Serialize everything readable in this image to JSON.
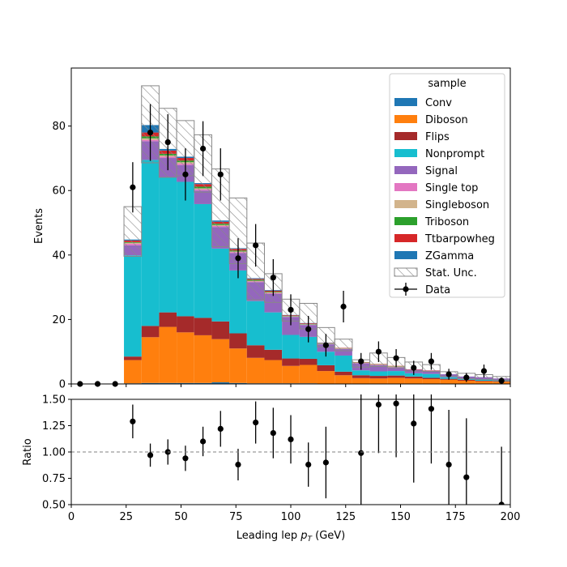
{
  "chart_data": {
    "type": "bar",
    "stacked": true,
    "xlabel_main": "Leading lep ",
    "xlabel_sub": "T",
    "xlabel_unit": " (GeV)",
    "xlabel_sym": "p",
    "ylabel": "Events",
    "ratio_ylabel": "Ratio",
    "xlim": [
      0,
      200
    ],
    "ylim": [
      0,
      98
    ],
    "ratio_ylim": [
      0.5,
      1.5
    ],
    "bin_edges": [
      0,
      8,
      16,
      24,
      32,
      40,
      48,
      56,
      64,
      72,
      80,
      88,
      96,
      104,
      112,
      120,
      128,
      136,
      144,
      152,
      160,
      168,
      176,
      184,
      192,
      200
    ],
    "x_ticks": [
      0,
      25,
      50,
      75,
      100,
      125,
      150,
      175,
      200
    ],
    "y_ticks": [
      0,
      20,
      40,
      60,
      80
    ],
    "ratio_ticks": [
      "0.50",
      "0.75",
      "1.00",
      "1.25",
      "1.50"
    ],
    "legend_title": "sample",
    "legend_position": "top-right",
    "series": [
      {
        "name": "Conv",
        "color": "#1f77b4",
        "values": [
          0,
          0,
          0,
          0.2,
          0.3,
          0.3,
          0.3,
          0.3,
          0.5,
          0.3,
          0.2,
          0.2,
          0.2,
          0.2,
          0.1,
          0.1,
          0.1,
          0.1,
          0.1,
          0.1,
          0.1,
          0.1,
          0.1,
          0.1,
          0.1
        ]
      },
      {
        "name": "Diboson",
        "color": "#ff7f0e",
        "values": [
          0,
          0,
          0,
          7.2,
          14.2,
          17.4,
          15.7,
          14.8,
          13.4,
          10.7,
          7.9,
          7.2,
          5.4,
          5.7,
          3.9,
          2.6,
          1.7,
          1.6,
          1.8,
          1.6,
          1.4,
          1.2,
          0.9,
          0.7,
          0.6
        ]
      },
      {
        "name": "Flips",
        "color": "#a52a2a",
        "values": [
          0,
          0,
          0,
          1.1,
          3.5,
          4.5,
          5.0,
          5.4,
          5.5,
          4.7,
          3.9,
          3.2,
          2.3,
          1.9,
          1.8,
          1.1,
          0.9,
          0.8,
          0.7,
          0.6,
          0.4,
          0.3,
          0.3,
          0.2,
          0.2
        ]
      },
      {
        "name": "Nonprompt",
        "color": "#17becf",
        "values": [
          0,
          0,
          0,
          31.4,
          51.5,
          42.0,
          41.7,
          35.3,
          22.6,
          19.5,
          13.7,
          11.6,
          7.3,
          6.8,
          4.2,
          5.0,
          1.5,
          1.4,
          1.4,
          1.0,
          1.2,
          0.5,
          0.4,
          0.4,
          0.2
        ]
      },
      {
        "name": "Signal",
        "color": "#9467bd",
        "values": [
          0,
          0,
          0,
          3.1,
          5.8,
          5.9,
          5.2,
          4.2,
          6.7,
          5.4,
          5.9,
          5.8,
          5.6,
          3.7,
          2.3,
          2.0,
          2.2,
          1.9,
          1.2,
          1.1,
          1.0,
          0.9,
          0.6,
          0.7,
          0.6
        ]
      },
      {
        "name": "Single top",
        "color": "#e377c2",
        "values": [
          0,
          0,
          0,
          0.5,
          0.4,
          0.4,
          0.5,
          0.4,
          0.3,
          0.3,
          0.2,
          0.2,
          0.1,
          0.1,
          0.1,
          0.1,
          0.1,
          0.1,
          0.1,
          0.0,
          0.0,
          0.0,
          0.0,
          0.0,
          0.0
        ]
      },
      {
        "name": "Singleboson",
        "color": "#d2b48c",
        "values": [
          0,
          0,
          0,
          0.3,
          0.5,
          0.4,
          0.4,
          0.3,
          0.3,
          0.2,
          0.2,
          0.2,
          0.1,
          0.1,
          0.1,
          0.1,
          0.1,
          0.1,
          0.1,
          0.0,
          0.0,
          0.0,
          0.0,
          0.0,
          0.0
        ]
      },
      {
        "name": "Triboson",
        "color": "#2ca02c",
        "values": [
          0,
          0,
          0,
          0.2,
          0.6,
          0.5,
          0.5,
          0.5,
          0.4,
          0.3,
          0.3,
          0.2,
          0.1,
          0.1,
          0.1,
          0.1,
          0.1,
          0.1,
          0.1,
          0.0,
          0.0,
          0.0,
          0.0,
          0.0,
          0.0
        ]
      },
      {
        "name": "Ttbarpowheg",
        "color": "#d62728",
        "values": [
          0,
          0,
          0,
          0.5,
          1.2,
          1.0,
          0.8,
          0.8,
          0.6,
          0.5,
          0.3,
          0.3,
          0.2,
          0.2,
          0.1,
          0.1,
          0.1,
          0.1,
          0.1,
          0.1,
          0.1,
          0.0,
          0.0,
          0.0,
          0.0
        ]
      },
      {
        "name": "ZGamma",
        "color": "#1f77b4",
        "values": [
          0,
          0,
          0,
          0.3,
          2.3,
          0.5,
          0.4,
          0.3,
          0.4,
          0.2,
          0.2,
          0.2,
          0.1,
          0.1,
          0.1,
          0.0,
          0.0,
          0.0,
          0.0,
          0.0,
          0.0,
          0.0,
          0.0,
          0.0,
          0.0
        ]
      }
    ],
    "stat_unc": {
      "name": "Stat. Unc.",
      "up": [
        0,
        0,
        0,
        55,
        92.5,
        85.5,
        81.7,
        77.3,
        66.7,
        57.7,
        43.7,
        34.2,
        26.3,
        25,
        17.5,
        13.9,
        7.5,
        9.6,
        8.2,
        6.8,
        6,
        3.8,
        3.3,
        2.9,
        2.3
      ],
      "down": [
        0,
        0,
        0,
        39.6,
        68.6,
        64.1,
        64.6,
        59.5,
        42.6,
        37.3,
        26.1,
        25.3,
        19.5,
        17.1,
        11.5,
        10.3,
        5.2,
        5.4,
        5.0,
        4.0,
        3.9,
        2.4,
        1.6,
        1.4,
        1.2
      ]
    },
    "data_points": {
      "name": "Data",
      "x": [
        4,
        12,
        20,
        28,
        36,
        44,
        52,
        60,
        68,
        76,
        84,
        92,
        100,
        108,
        116,
        124,
        132,
        140,
        148,
        156,
        164,
        172,
        180,
        188,
        196
      ],
      "y": [
        0,
        0,
        0,
        61,
        78,
        75,
        65,
        73,
        65,
        39,
        43,
        33,
        23,
        17,
        12,
        24,
        7,
        10,
        8,
        5,
        7,
        3,
        2,
        4,
        1
      ],
      "err": [
        0,
        0,
        0,
        7.8,
        8.8,
        8.7,
        8.1,
        8.5,
        8.1,
        6.2,
        6.6,
        5.7,
        4.8,
        4.1,
        3.5,
        4.9,
        2.6,
        3.2,
        2.8,
        2.2,
        2.6,
        1.7,
        1.4,
        2.0,
        1.0
      ]
    },
    "ratio": {
      "x": [
        28,
        36,
        44,
        52,
        60,
        68,
        76,
        84,
        92,
        100,
        108,
        116,
        132,
        140,
        148,
        156,
        164,
        172,
        180,
        196
      ],
      "y": [
        1.29,
        0.97,
        1.0,
        0.94,
        1.1,
        1.22,
        0.88,
        1.28,
        1.18,
        1.12,
        0.88,
        0.9,
        0.99,
        1.45,
        1.46,
        1.27,
        1.41,
        0.88,
        0.76,
        0.5
      ],
      "err": [
        0.16,
        0.11,
        0.12,
        0.12,
        0.14,
        0.17,
        0.15,
        0.2,
        0.24,
        0.23,
        0.21,
        0.34,
        0.63,
        0.46,
        0.51,
        0.56,
        0.52,
        0.52,
        0.56,
        0.55
      ]
    }
  }
}
